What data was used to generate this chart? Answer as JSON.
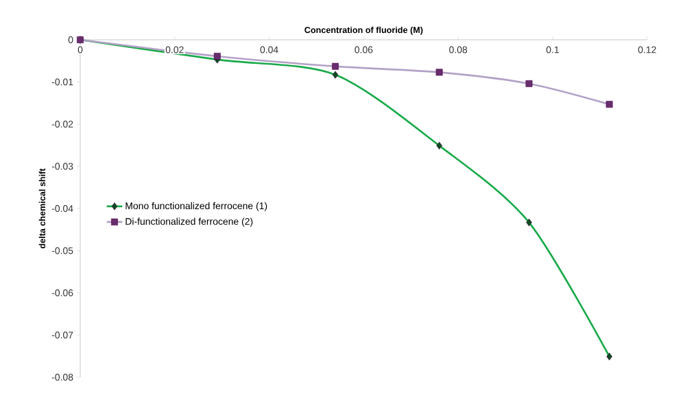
{
  "chart_data": {
    "type": "line",
    "xlabel": "Concentration of fluoride (M)",
    "ylabel": "delta chemical shift",
    "xlim": [
      0,
      0.12
    ],
    "ylim": [
      -0.08,
      0
    ],
    "xticks": [
      0,
      0.02,
      0.04,
      0.06,
      0.08,
      0.1,
      0.12
    ],
    "yticks": [
      -0.08,
      -0.07,
      -0.06,
      -0.05,
      -0.04,
      -0.03,
      -0.02,
      -0.01,
      0
    ],
    "legend": "left",
    "grid": false,
    "line_style": "solid",
    "series": [
      {
        "name": "Mono functionalized ferrocene (1)",
        "color": "#1aaa4a",
        "marker": "diamond",
        "x": [
          0,
          0.029,
          0.054,
          0.076,
          0.095,
          0.112
        ],
        "values": [
          0,
          -0.0047,
          -0.0083,
          -0.0251,
          -0.0433,
          -0.0751
        ]
      },
      {
        "name": "Di-functionalized ferrocene (2)",
        "color": "#b3a2c7",
        "marker": "square",
        "x": [
          0,
          0.029,
          0.054,
          0.076,
          0.095,
          0.112
        ],
        "values": [
          0,
          -0.0039,
          -0.0063,
          -0.0077,
          -0.0104,
          -0.0153
        ]
      }
    ]
  }
}
